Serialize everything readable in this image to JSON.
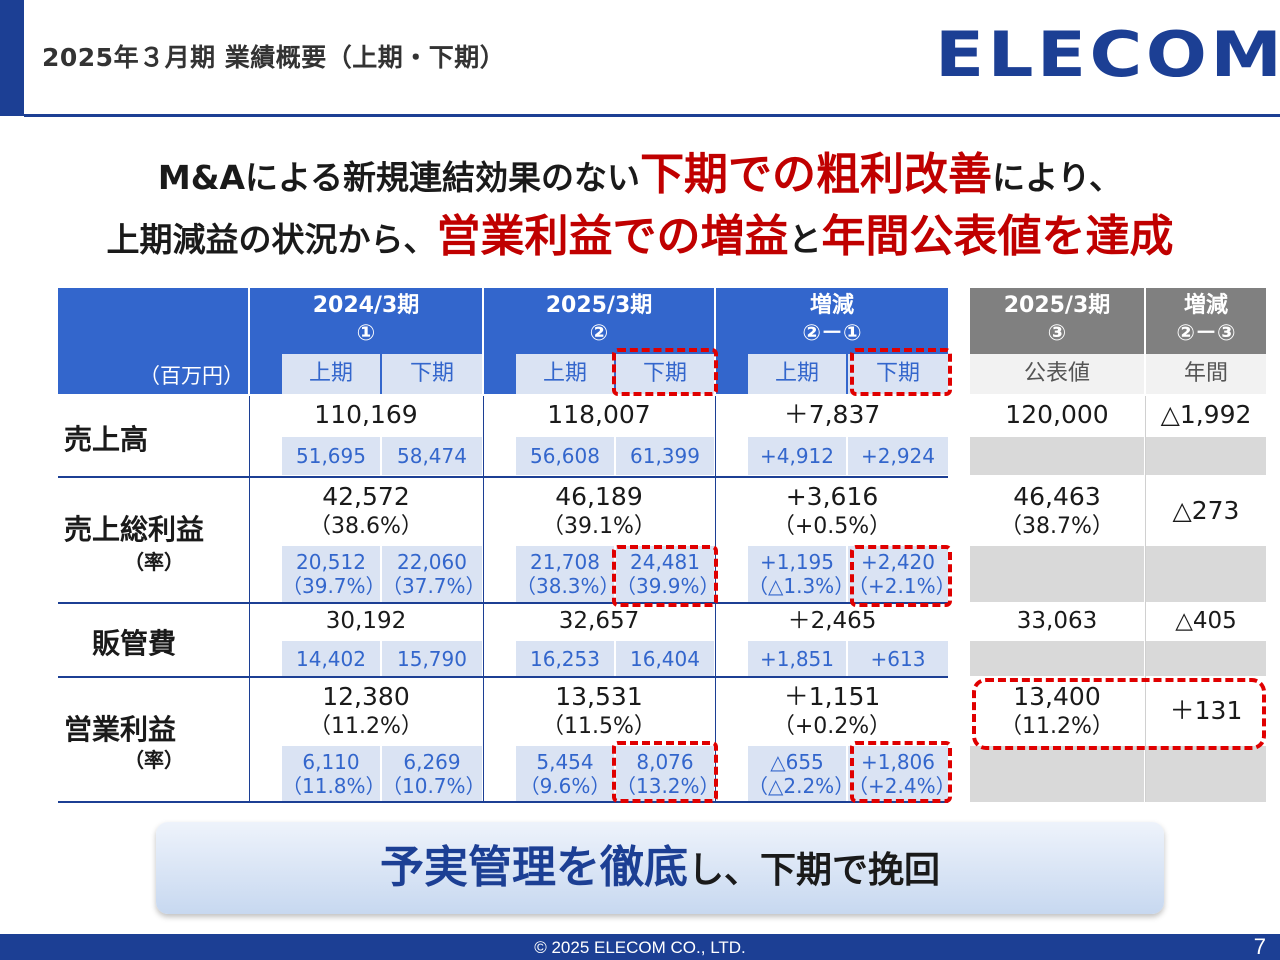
{
  "header": {
    "title": "2025年３月期 業績概要（上期・下期）",
    "logo": "ELECOM"
  },
  "headline": {
    "line1_a": "M&Aによる新規連結効果のない",
    "line1_b": "下期での粗利改善",
    "line1_c": "により、",
    "line2_a": "上期減益の状況から、",
    "line2_b": "営業利益での増益",
    "line2_c": "と",
    "line2_d": "年間公表値を達成"
  },
  "table": {
    "unit": "（百万円）",
    "columns": {
      "fy2024": {
        "title": "2024/3期",
        "mark": "①"
      },
      "fy2025": {
        "title": "2025/3期",
        "mark": "②"
      },
      "diff": {
        "title": "増減",
        "mark": "②－①"
      },
      "plan": {
        "title": "2025/3期",
        "mark": "③",
        "sub": "公表値"
      },
      "plandiff": {
        "title": "増減",
        "mark": "②－③",
        "sub": "年間"
      },
      "h1": "上期",
      "h2": "下期"
    },
    "rows": {
      "sales": {
        "label": "売上高",
        "fy2024": "110,169",
        "fy2025": "118,007",
        "diff": "＋7,837",
        "plan": "120,000",
        "plandiff": "△1,992",
        "fy2024_h1": "51,695",
        "fy2024_h2": "58,474",
        "fy2025_h1": "56,608",
        "fy2025_h2": "61,399",
        "diff_h1": "+4,912",
        "diff_h2": "+2,924"
      },
      "gross": {
        "label": "売上総利益",
        "sublabel": "（率）",
        "fy2024": "42,572",
        "fy2024_rate": "（38.6%）",
        "fy2025": "46,189",
        "fy2025_rate": "（39.1%）",
        "diff": "+3,616",
        "diff_rate": "（+0.5%）",
        "plan": "46,463",
        "plan_rate": "（38.7%）",
        "plandiff": "△273",
        "fy2024_h1": "20,512",
        "fy2024_h1_rate": "（39.7%）",
        "fy2024_h2": "22,060",
        "fy2024_h2_rate": "（37.7%）",
        "fy2025_h1": "21,708",
        "fy2025_h1_rate": "（38.3%）",
        "fy2025_h2": "24,481",
        "fy2025_h2_rate": "（39.9%）",
        "diff_h1": "+1,195",
        "diff_h1_rate": "（△1.3%）",
        "diff_h2": "+2,420",
        "diff_h2_rate": "（+2.1%）"
      },
      "sga": {
        "label": "販管費",
        "fy2024": "30,192",
        "fy2025": "32,657",
        "diff": "＋2,465",
        "plan": "33,063",
        "plandiff": "△405",
        "fy2024_h1": "14,402",
        "fy2024_h2": "15,790",
        "fy2025_h1": "16,253",
        "fy2025_h2": "16,404",
        "diff_h1": "+1,851",
        "diff_h2": "+613"
      },
      "op": {
        "label": "営業利益",
        "sublabel": "（率）",
        "fy2024": "12,380",
        "fy2024_rate": "（11.2%）",
        "fy2025": "13,531",
        "fy2025_rate": "（11.5%）",
        "diff": "＋1,151",
        "diff_rate": "（+0.2%）",
        "plan": "13,400",
        "plan_rate": "（11.2%）",
        "plandiff": "＋131",
        "fy2024_h1": "6,110",
        "fy2024_h1_rate": "（11.8%）",
        "fy2024_h2": "6,269",
        "fy2024_h2_rate": "（10.7%）",
        "fy2025_h1": "5,454",
        "fy2025_h1_rate": "（9.6%）",
        "fy2025_h2": "8,076",
        "fy2025_h2_rate": "（13.2%）",
        "diff_h1": "△655",
        "diff_h1_rate": "（△2.2%）",
        "diff_h2": "+1,806",
        "diff_h2_rate": "（+2.4%）"
      }
    }
  },
  "banner": {
    "emph": "予実管理を徹底",
    "rest": "し、下期で挽回"
  },
  "footer": {
    "copyright": "© 2025 ELECOM CO., LTD.",
    "page": "7"
  },
  "colors": {
    "brand": "#1c3f94",
    "header_blue": "#3366cc",
    "sub_blue": "#dae3f3",
    "accent_red": "#c00000",
    "gray": "#808080"
  }
}
